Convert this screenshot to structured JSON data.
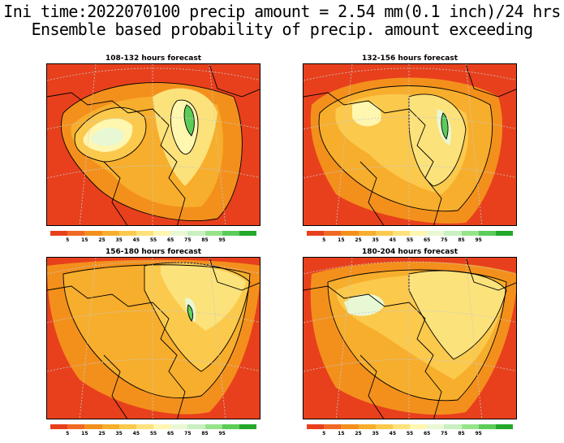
{
  "header": {
    "line1": "Ini time:2022070100 precip amount = 2.54 mm(0.1 inch)/24 hrs",
    "line2": "Ensemble based probability of precip. amount exceeding"
  },
  "panels": [
    {
      "title": "108-132 hours forecast"
    },
    {
      "title": "132-156 hours forecast"
    },
    {
      "title": "156-180 hours forecast"
    },
    {
      "title": "180-204 hours forecast"
    }
  ],
  "legend": {
    "colors": [
      "#e8401c",
      "#f06a24",
      "#f3901c",
      "#f7ae2c",
      "#fbc94c",
      "#fce27a",
      "#fff6b0",
      "#e8f8d4",
      "#c8f0c0",
      "#96e48a",
      "#5ccc58",
      "#22a82a"
    ],
    "labels": [
      "5",
      "15",
      "25",
      "35",
      "45",
      "55",
      "65",
      "75",
      "85",
      "95"
    ]
  },
  "colors": {
    "background": "#e8401c",
    "contour": "#000000",
    "grid": "#c8c8c8"
  }
}
